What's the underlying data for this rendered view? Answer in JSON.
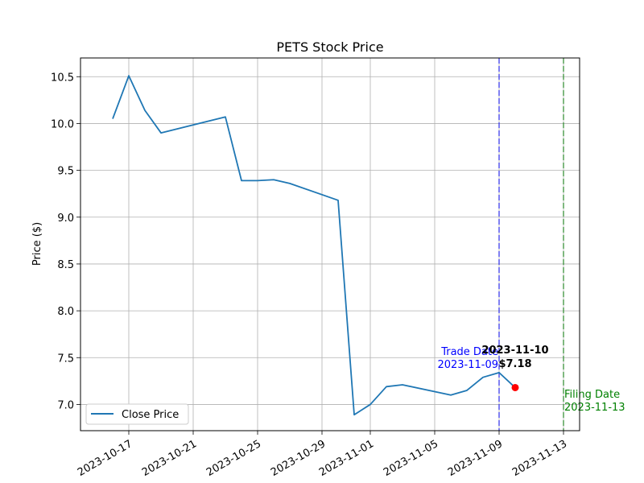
{
  "chart_data": {
    "type": "line",
    "title": "PETS Stock Price",
    "xlabel": "",
    "ylabel": "Price ($)",
    "xlim": [
      "2023-10-14",
      "2023-11-14"
    ],
    "ylim": [
      6.72,
      10.7
    ],
    "x_ticks": [
      "2023-10-17",
      "2023-10-21",
      "2023-10-25",
      "2023-10-29",
      "2023-11-01",
      "2023-11-05",
      "2023-11-09",
      "2023-11-13"
    ],
    "y_ticks": [
      "7.0",
      "7.5",
      "8.0",
      "8.5",
      "9.0",
      "9.5",
      "10.0",
      "10.5"
    ],
    "grid": true,
    "legend_position": "lower-left",
    "series": [
      {
        "name": "Close Price",
        "color": "#1f77b4",
        "x": [
          "2023-10-16",
          "2023-10-17",
          "2023-10-18",
          "2023-10-19",
          "2023-10-23",
          "2023-10-24",
          "2023-10-25",
          "2023-10-26",
          "2023-10-27",
          "2023-10-30",
          "2023-10-31",
          "2023-11-01",
          "2023-11-02",
          "2023-11-03",
          "2023-11-06",
          "2023-11-07",
          "2023-11-08",
          "2023-11-09",
          "2023-11-10"
        ],
        "y": [
          10.05,
          10.51,
          10.14,
          9.9,
          10.07,
          9.39,
          9.39,
          9.4,
          9.36,
          9.18,
          6.89,
          7.0,
          7.19,
          7.21,
          7.1,
          7.15,
          7.29,
          7.34,
          7.18
        ]
      }
    ],
    "highlight_point": {
      "x": "2023-11-10",
      "y": 7.18,
      "color": "#ff0000",
      "label_date": "2023-11-10",
      "label_price": "$7.18"
    },
    "vlines": [
      {
        "x": "2023-11-09",
        "color": "#0000ff",
        "label_line1": "Trade Date",
        "label_line2": "2023-11-09"
      },
      {
        "x": "2023-11-13",
        "color": "#008000",
        "label_line1": "Filing Date",
        "label_line2": "2023-11-13"
      }
    ]
  }
}
